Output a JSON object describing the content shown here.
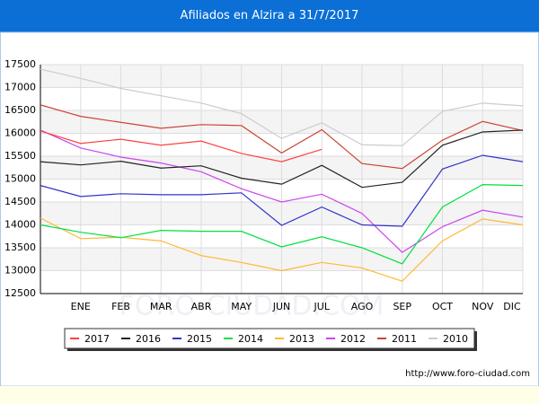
{
  "chart_data": {
    "type": "line",
    "title": "Afiliados en Alzira a 31/7/2017",
    "categories": [
      null,
      "ENE",
      "FEB",
      "MAR",
      "ABR",
      "MAY",
      "JUN",
      "JUL",
      "AGO",
      "SEP",
      "OCT",
      "NOV",
      "DIC"
    ],
    "ylim": [
      12500,
      17500
    ],
    "yticks": [
      12500,
      13000,
      13500,
      14000,
      14500,
      15000,
      15500,
      16000,
      16500,
      17000,
      17500
    ],
    "grid": true,
    "series": [
      {
        "name": "2017",
        "color": "#ff4040",
        "values": [
          16050,
          15780,
          15870,
          15740,
          15830,
          15560,
          15380,
          15650,
          null,
          null,
          null,
          null,
          null
        ]
      },
      {
        "name": "2016",
        "color": "#222222",
        "values": [
          15380,
          15310,
          15390,
          15240,
          15290,
          15020,
          14890,
          15300,
          14820,
          14930,
          15740,
          16030,
          16070
        ]
      },
      {
        "name": "2015",
        "color": "#3333cc",
        "values": [
          14860,
          14620,
          14680,
          14660,
          14660,
          14700,
          13990,
          14390,
          14000,
          13970,
          15220,
          15520,
          15380
        ]
      },
      {
        "name": "2014",
        "color": "#00e040",
        "values": [
          14000,
          13840,
          13720,
          13880,
          13860,
          13860,
          13520,
          13740,
          13500,
          13150,
          14390,
          14880,
          14860
        ]
      },
      {
        "name": "2013",
        "color": "#ffb833",
        "values": [
          14150,
          13700,
          13730,
          13650,
          13330,
          13180,
          13000,
          13180,
          13060,
          12770,
          13650,
          14130,
          14000
        ]
      },
      {
        "name": "2012",
        "color": "#cc44ee",
        "values": [
          16070,
          15680,
          15480,
          15350,
          15160,
          14790,
          14500,
          14670,
          14250,
          13400,
          13960,
          14320,
          14170
        ]
      },
      {
        "name": "2011",
        "color": "#cc4433",
        "values": [
          16620,
          16370,
          16240,
          16110,
          16190,
          16170,
          15570,
          16080,
          15340,
          15230,
          15850,
          16260,
          16060
        ]
      },
      {
        "name": "2010",
        "color": "#cccccc",
        "values": [
          17400,
          17200,
          16980,
          16820,
          16660,
          16430,
          15890,
          16230,
          15750,
          15730,
          16480,
          16660,
          16600
        ]
      }
    ],
    "watermark": "FORO-CIUDAD.COM",
    "footer": "http://www.foro-ciudad.com"
  }
}
